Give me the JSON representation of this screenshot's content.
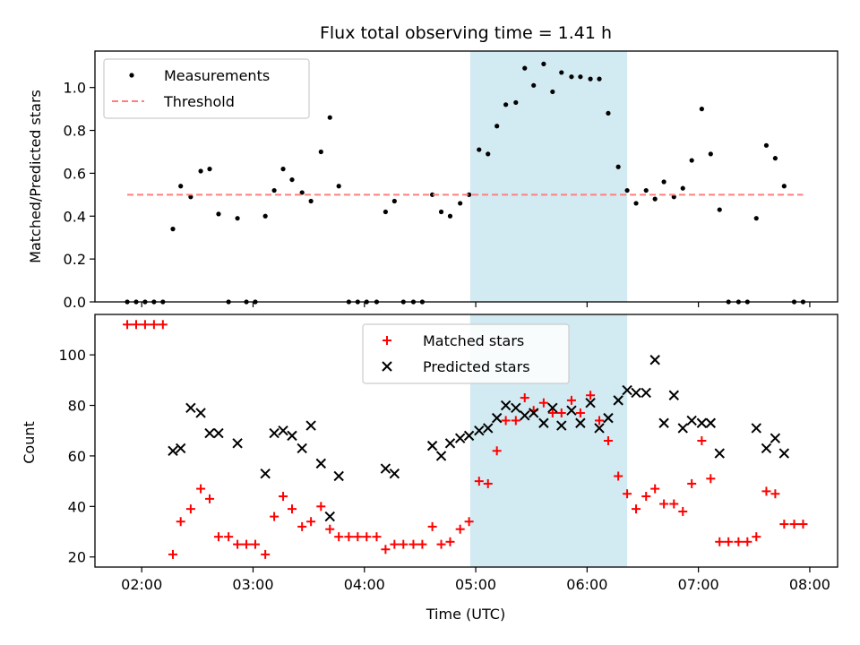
{
  "chart_data": [
    {
      "type": "scatter",
      "title": "Flux total observing time = 1.41 h",
      "xlabel": "",
      "ylabel": "Matched/Predicted stars",
      "xlim": [
        1.58,
        8.25
      ],
      "ylim": [
        0,
        1.17
      ],
      "xticks": [
        2,
        3,
        4,
        5,
        6,
        7,
        8
      ],
      "xtick_labels": [
        "",
        "",
        "",
        "",
        "",
        "",
        ""
      ],
      "yticks": [
        0.0,
        0.2,
        0.4,
        0.6,
        0.8,
        1.0
      ],
      "ytick_labels": [
        "0.0",
        "0.2",
        "0.4",
        "0.6",
        "0.8",
        "1.0"
      ],
      "shaded_span": {
        "x": [
          4.95,
          6.36
        ],
        "color": "#add8e6"
      },
      "legend_position": "top-left",
      "series": [
        {
          "name": "Measurements",
          "marker": "dot",
          "color": "#000000",
          "x": [
            1.87,
            1.95,
            2.03,
            2.11,
            2.19,
            2.28,
            2.35,
            2.44,
            2.53,
            2.61,
            2.69,
            2.78,
            2.86,
            2.94,
            3.02,
            3.11,
            3.19,
            3.27,
            3.35,
            3.44,
            3.52,
            3.61,
            3.69,
            3.77,
            3.86,
            3.94,
            4.02,
            4.11,
            4.19,
            4.27,
            4.35,
            4.44,
            4.52,
            4.61,
            4.69,
            4.77,
            4.86,
            4.94,
            5.03,
            5.11,
            5.19,
            5.27,
            5.36,
            5.44,
            5.52,
            5.61,
            5.69,
            5.77,
            5.86,
            5.94,
            6.03,
            6.11,
            6.19,
            6.28,
            6.36,
            6.44,
            6.53,
            6.61,
            6.69,
            6.78,
            6.86,
            6.94,
            7.03,
            7.11,
            7.19,
            7.27,
            7.36,
            7.44,
            7.52,
            7.61,
            7.69,
            7.77,
            7.86,
            7.94
          ],
          "y": [
            0,
            0,
            0,
            0,
            0,
            0.34,
            0.54,
            0.49,
            0.61,
            0.62,
            0.41,
            0,
            0.39,
            0,
            0,
            0.4,
            0.52,
            0.62,
            0.57,
            0.51,
            0.47,
            0.7,
            0.86,
            0.54,
            0,
            0,
            0,
            0,
            0.42,
            0.47,
            0,
            0,
            0,
            0.5,
            0.42,
            0.4,
            0.46,
            0.5,
            0.71,
            0.69,
            0.82,
            0.92,
            0.93,
            1.09,
            1.01,
            1.11,
            0.98,
            1.07,
            1.05,
            1.05,
            1.04,
            1.04,
            0.88,
            0.63,
            0.52,
            0.46,
            0.52,
            0.48,
            0.56,
            0.49,
            0.53,
            0.66,
            0.9,
            0.69,
            0.43,
            0,
            0,
            0,
            0.39,
            0.73,
            0.67,
            0.54,
            0,
            0
          ]
        },
        {
          "name": "Threshold",
          "type": "line",
          "style": "dashed",
          "color": "#ff7f7f",
          "x": [
            1.87,
            7.94
          ],
          "y": [
            0.5,
            0.5
          ]
        }
      ]
    },
    {
      "type": "scatter",
      "title": "",
      "xlabel": "Time (UTC)",
      "ylabel": "Count",
      "xlim": [
        1.58,
        8.25
      ],
      "ylim": [
        16,
        116
      ],
      "xticks": [
        2,
        3,
        4,
        5,
        6,
        7,
        8
      ],
      "xtick_labels": [
        "02:00",
        "03:00",
        "04:00",
        "05:00",
        "06:00",
        "07:00",
        "08:00"
      ],
      "yticks": [
        20,
        40,
        60,
        80,
        100
      ],
      "ytick_labels": [
        "20",
        "40",
        "60",
        "80",
        "100"
      ],
      "shaded_span": {
        "x": [
          4.95,
          6.36
        ],
        "color": "#add8e6"
      },
      "legend_position": "top-center",
      "series": [
        {
          "name": "Matched stars",
          "marker": "plus",
          "color": "#ff0000",
          "x": [
            1.87,
            1.95,
            2.03,
            2.11,
            2.19,
            2.28,
            2.35,
            2.44,
            2.53,
            2.61,
            2.69,
            2.78,
            2.86,
            2.94,
            3.02,
            3.11,
            3.19,
            3.27,
            3.35,
            3.44,
            3.52,
            3.61,
            3.69,
            3.77,
            3.86,
            3.94,
            4.02,
            4.11,
            4.19,
            4.27,
            4.35,
            4.44,
            4.52,
            4.61,
            4.69,
            4.77,
            4.86,
            4.94,
            5.03,
            5.11,
            5.19,
            5.27,
            5.36,
            5.44,
            5.52,
            5.61,
            5.69,
            5.77,
            5.86,
            5.94,
            6.03,
            6.11,
            6.19,
            6.28,
            6.36,
            6.44,
            6.53,
            6.61,
            6.69,
            6.78,
            6.86,
            6.94,
            7.03,
            7.11,
            7.19,
            7.27,
            7.36,
            7.44,
            7.52,
            7.61,
            7.69,
            7.77,
            7.86,
            7.94
          ],
          "y": [
            112,
            112,
            112,
            112,
            112,
            21,
            34,
            39,
            47,
            43,
            28,
            28,
            25,
            25,
            25,
            21,
            36,
            44,
            39,
            32,
            34,
            40,
            31,
            28,
            28,
            28,
            28,
            28,
            23,
            25,
            25,
            25,
            25,
            32,
            25,
            26,
            31,
            34,
            50,
            49,
            62,
            74,
            74,
            83,
            78,
            81,
            77,
            77,
            82,
            77,
            84,
            74,
            66,
            52,
            45,
            39,
            44,
            47,
            41,
            41,
            38,
            49,
            66,
            51,
            26,
            26,
            26,
            26,
            28,
            46,
            45,
            33,
            33,
            33
          ]
        },
        {
          "name": "Predicted stars",
          "marker": "x",
          "color": "#000000",
          "x": [
            2.28,
            2.35,
            2.44,
            2.53,
            2.61,
            2.69,
            2.86,
            3.11,
            3.19,
            3.27,
            3.35,
            3.44,
            3.52,
            3.61,
            3.69,
            3.77,
            4.19,
            4.27,
            4.61,
            4.69,
            4.77,
            4.86,
            4.94,
            5.03,
            5.11,
            5.19,
            5.27,
            5.36,
            5.44,
            5.52,
            5.61,
            5.69,
            5.77,
            5.86,
            5.94,
            6.03,
            6.11,
            6.19,
            6.28,
            6.36,
            6.44,
            6.53,
            6.61,
            6.69,
            6.78,
            6.86,
            6.94,
            7.03,
            7.11,
            7.19,
            7.52,
            7.61,
            7.69,
            7.77
          ],
          "y": [
            62,
            63,
            79,
            77,
            69,
            69,
            65,
            53,
            69,
            70,
            68,
            63,
            72,
            57,
            36,
            52,
            55,
            53,
            64,
            60,
            65,
            67,
            68,
            70,
            71,
            75,
            80,
            79,
            76,
            77,
            73,
            79,
            72,
            78,
            73,
            81,
            71,
            75,
            82,
            86,
            85,
            85,
            98,
            73,
            84,
            71,
            74,
            73,
            73,
            61,
            71,
            63,
            67,
            61
          ]
        }
      ]
    }
  ]
}
